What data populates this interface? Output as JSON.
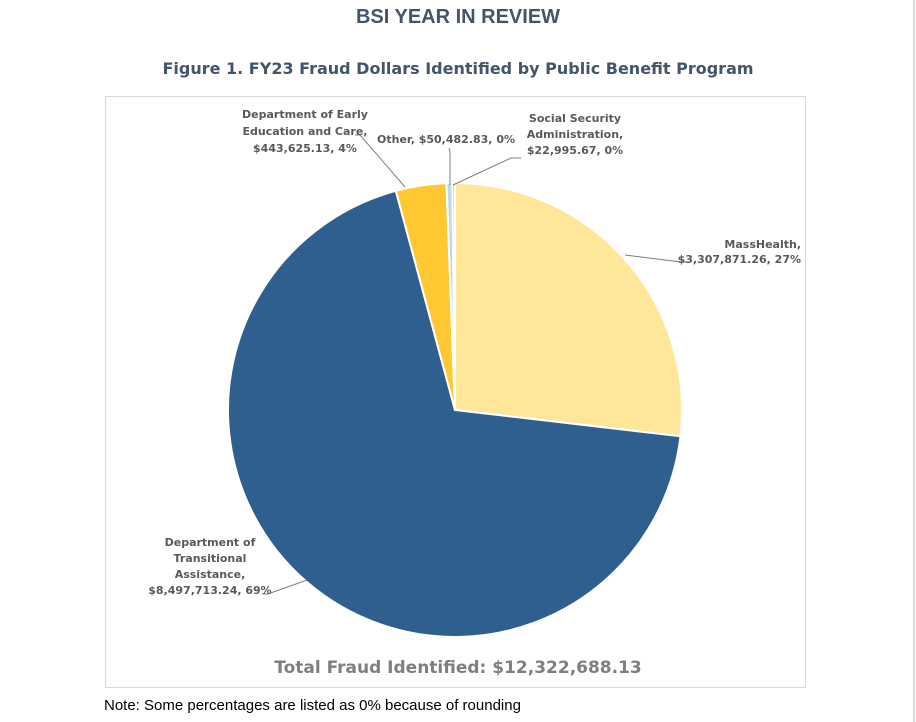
{
  "page": {
    "heading": "BSI YEAR IN REVIEW",
    "figure_title": "Figure 1. FY23 Fraud Dollars Identified by Public Benefit Program",
    "total": "Total Fraud Identified: $12,322,688.13",
    "note": "Note: Some percentages are listed as 0% because of rounding"
  },
  "colors": {
    "heading": "#44546a",
    "label_text": "#595959",
    "leader_line": "#7f7f7f",
    "slice_border": "#ffffff"
  },
  "chart_data": {
    "type": "pie",
    "start_angle_deg": 0,
    "direction": "clockwise",
    "slices": [
      {
        "name": "MassHealth",
        "value": 3307871.26,
        "percent": "27%",
        "color": "#ffe699",
        "label_lines": [
          "MassHealth,",
          "$3,307,871.26, 27%"
        ]
      },
      {
        "name": "Department of Transitional Assistance",
        "value": 8497713.24,
        "percent": "69%",
        "color": "#2f5f8f",
        "label_lines": [
          "Department of",
          "Transitional",
          "Assistance,",
          "$8,497,713.24, 69%"
        ]
      },
      {
        "name": "Department of Early Education and Care",
        "value": 443625.13,
        "percent": "4%",
        "color": "#ffc832",
        "label_lines": [
          "Department of Early",
          "Education and Care,",
          "$443,625.13, 4%"
        ]
      },
      {
        "name": "Other",
        "value": 50482.83,
        "percent": "0%",
        "color": "#bdd7ee",
        "label_lines": [
          "Other, $50,482.83, 0%"
        ]
      },
      {
        "name": "Social Security Administration",
        "value": 22995.67,
        "percent": "0%",
        "color": "#9dc3e6",
        "label_lines": [
          "Social Security",
          "Administration,",
          "$22,995.67, 0%"
        ]
      }
    ]
  }
}
